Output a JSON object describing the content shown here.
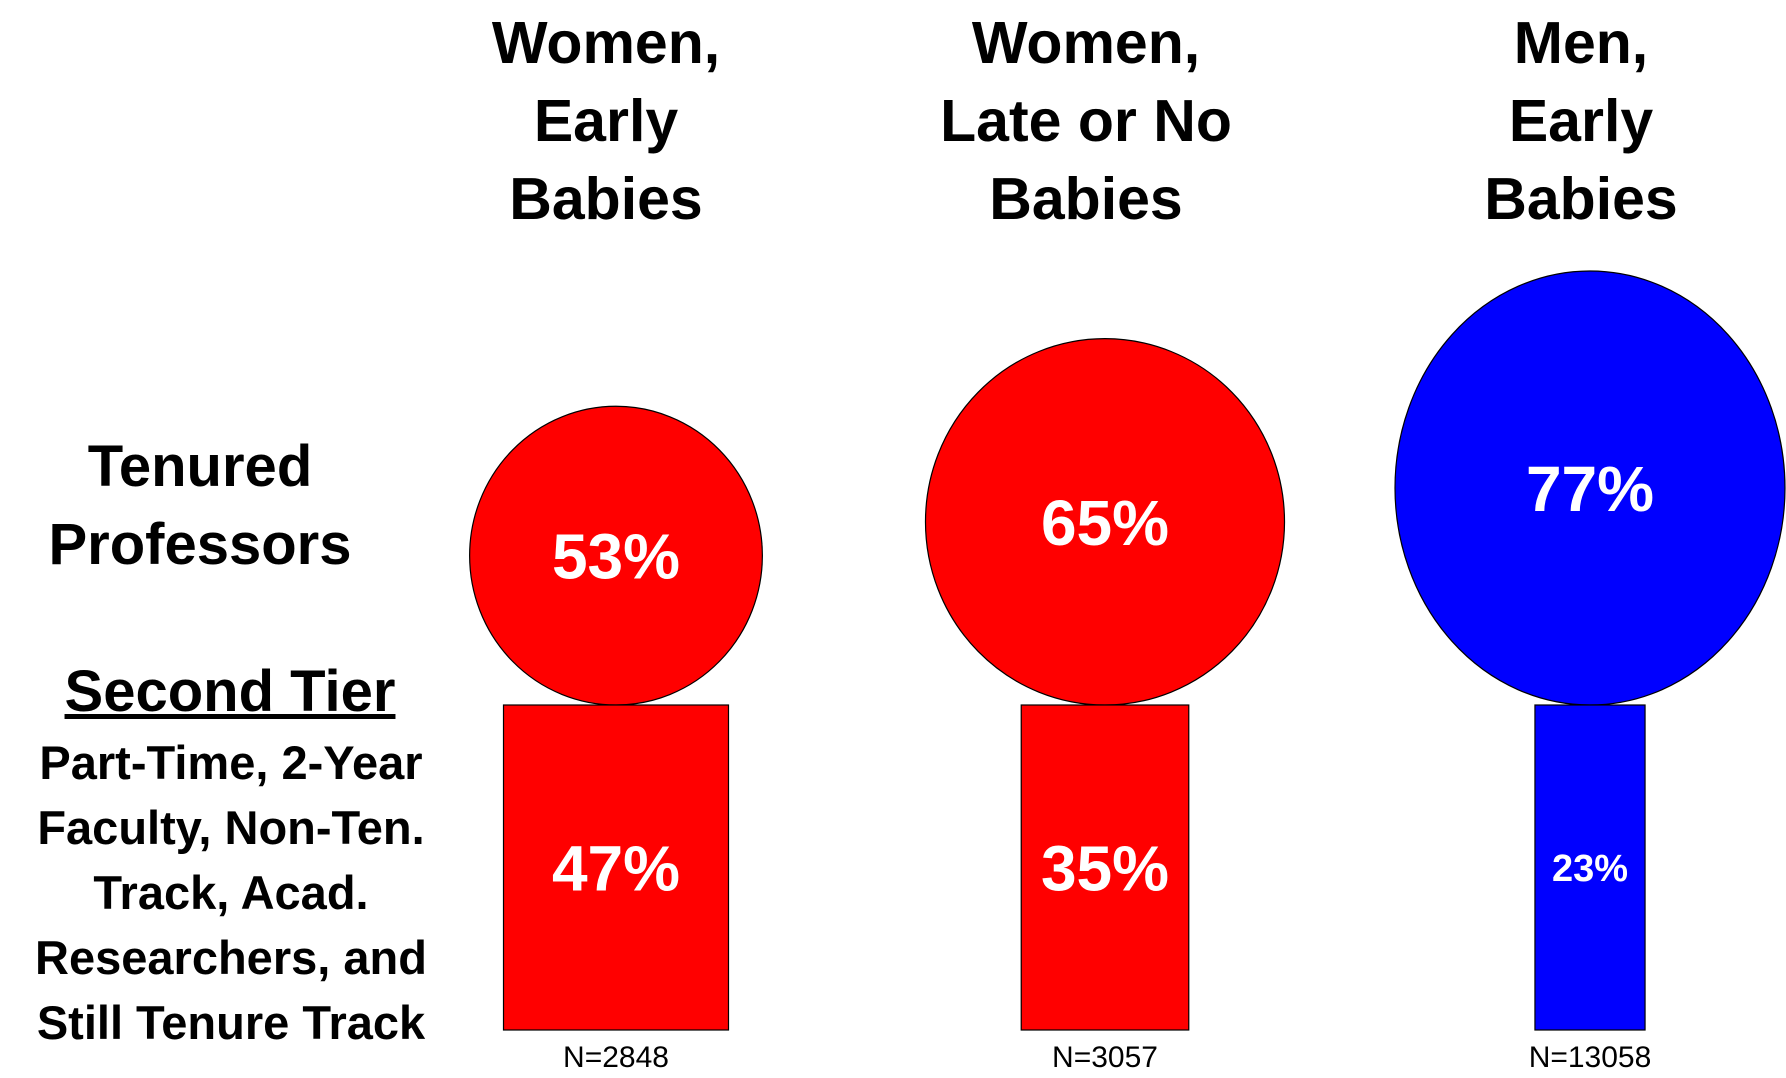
{
  "chart_data": {
    "type": "bar",
    "categories": [
      [
        "Women,",
        "Early",
        "Babies"
      ],
      [
        "Women,",
        "Late or No",
        "Babies"
      ],
      [
        "Men,",
        "Early",
        "Babies"
      ]
    ],
    "row_labels": {
      "tenured": [
        "Tenured",
        "Professors"
      ],
      "second_tier_title": "Second Tier",
      "second_tier_desc": [
        "Part-Time, 2-Year",
        "Faculty, Non-Ten.",
        "Track, Acad.",
        "Researchers, and",
        "Still Tenure Track"
      ]
    },
    "series": [
      {
        "name": "Tenured Professors",
        "values": [
          53,
          65,
          77
        ]
      },
      {
        "name": "Second Tier",
        "values": [
          47,
          35,
          23
        ]
      }
    ],
    "value_labels": {
      "tenured": [
        "53%",
        "65%",
        "77%"
      ],
      "second_tier": [
        "47%",
        "35%",
        "23%"
      ]
    },
    "n_labels": [
      "N=2848",
      "N=3057",
      "N=13058"
    ],
    "colors": [
      "#ff0000",
      "#ff0000",
      "#0000ff"
    ],
    "label_color": "#ffffff"
  }
}
